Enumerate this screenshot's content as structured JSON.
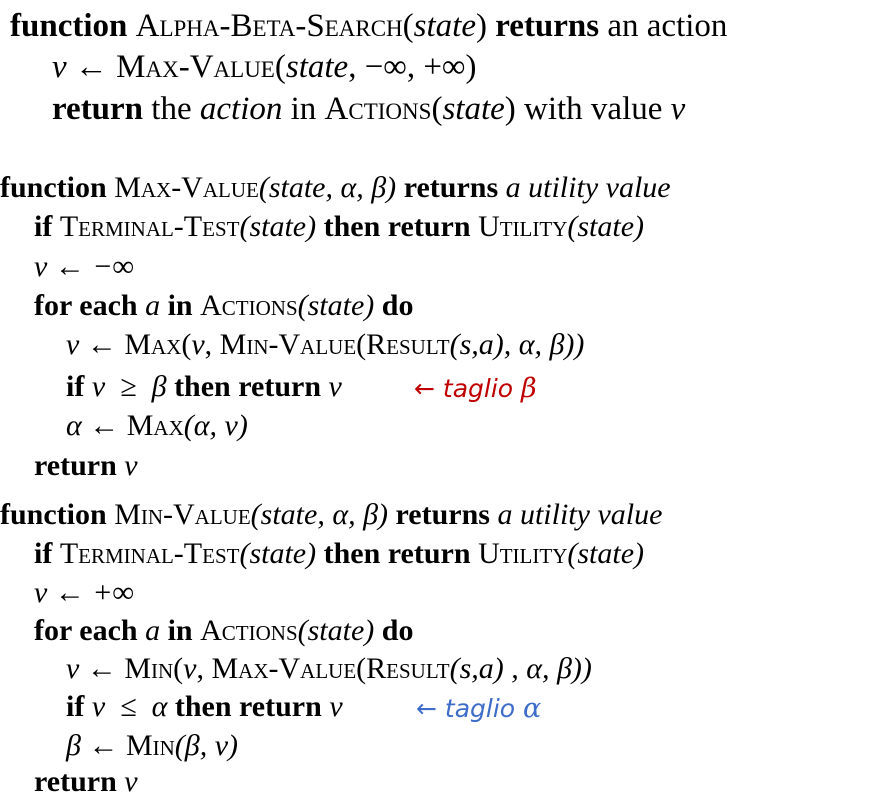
{
  "alpha_beta_search": {
    "header": {
      "kw_function": "function",
      "name": "Alpha-Beta-Search",
      "open": "(",
      "param": "state",
      "close": ")",
      "kw_returns": "returns",
      "rest": "an action"
    },
    "line1": {
      "v": "v",
      "arrow": " ← ",
      "fn": "Max-Value",
      "open": "(",
      "param": "state",
      "args": ", −∞, +∞)"
    },
    "line2": {
      "kw_return": "return",
      "the": " the ",
      "action": "action",
      "in": " in ",
      "fn": "Actions",
      "open": "(",
      "param": "state",
      "close": ")",
      "with": " with value ",
      "v": "v"
    }
  },
  "max_value": {
    "header": {
      "kw_function": "function",
      "name": "Max-Value",
      "params": "(state, α, β)",
      "kw_returns": "returns",
      "rest": "a utility value"
    },
    "if_terminal": {
      "kw_if": "if",
      "test": "Terminal-Test",
      "arg": "(state)",
      "kw_then_return": "then return",
      "utility": "Utility",
      "arg2": "(state)"
    },
    "init": "v ← −∞",
    "for_each": {
      "kw_for_each": "for each",
      "a": "a",
      "kw_in": "in",
      "fn": "Actions",
      "arg": "(state)",
      "kw_do": "do"
    },
    "update": {
      "v": "v",
      "arrow": " ← ",
      "fn": "Max",
      "open": "(",
      "v2": "v",
      "comma": ", ",
      "fn2": "Min-Value",
      "open2": "(",
      "fn3": "Result",
      "args3": "(s,a)",
      "rest": ", α, β))"
    },
    "cut_test": {
      "kw_if": "if",
      "cond": "v  ≥  β",
      "kw_then_return": "then return",
      "v": "v"
    },
    "annotation": {
      "arrow": "← ",
      "text": "taglio ",
      "greek": "β"
    },
    "alpha_update": {
      "lhs": "α",
      "arrow": " ← ",
      "fn": "Max",
      "args": "(α, v)"
    },
    "ret": {
      "kw_return": "return",
      "v": "v"
    }
  },
  "min_value": {
    "header": {
      "kw_function": "function",
      "name": "Min-Value",
      "params": "(state, α, β)",
      "kw_returns": "returns",
      "rest": "a utility value"
    },
    "if_terminal": {
      "kw_if": "if",
      "test": "Terminal-Test",
      "arg": "(state)",
      "kw_then_return": "then return",
      "utility": "Utility",
      "arg2": "(state)"
    },
    "init": "v ← +∞",
    "for_each": {
      "kw_for_each": "for each",
      "a": "a",
      "kw_in": "in",
      "fn": "Actions",
      "arg": "(state)",
      "kw_do": "do"
    },
    "update": {
      "v": "v",
      "arrow": " ← ",
      "fn": "Min",
      "open": "(",
      "v2": "v",
      "comma": ", ",
      "fn2": "Max-Value",
      "open2": "(",
      "fn3": "Result",
      "args3": "(s,a)",
      "rest": " , α, β))"
    },
    "cut_test": {
      "kw_if": "if",
      "cond": "v  ≤  α",
      "kw_then_return": "then return",
      "v": "v"
    },
    "annotation": {
      "arrow": "← ",
      "text": "taglio ",
      "greek": "α"
    },
    "beta_update": {
      "lhs": "β",
      "arrow": " ← ",
      "fn": "Min",
      "args": "(β, v)"
    },
    "ret": {
      "kw_return": "return",
      "v": "v"
    }
  },
  "colors": {
    "annotation_red": "#c00000",
    "annotation_blue": "#3d6cc9",
    "text": "#000000"
  }
}
